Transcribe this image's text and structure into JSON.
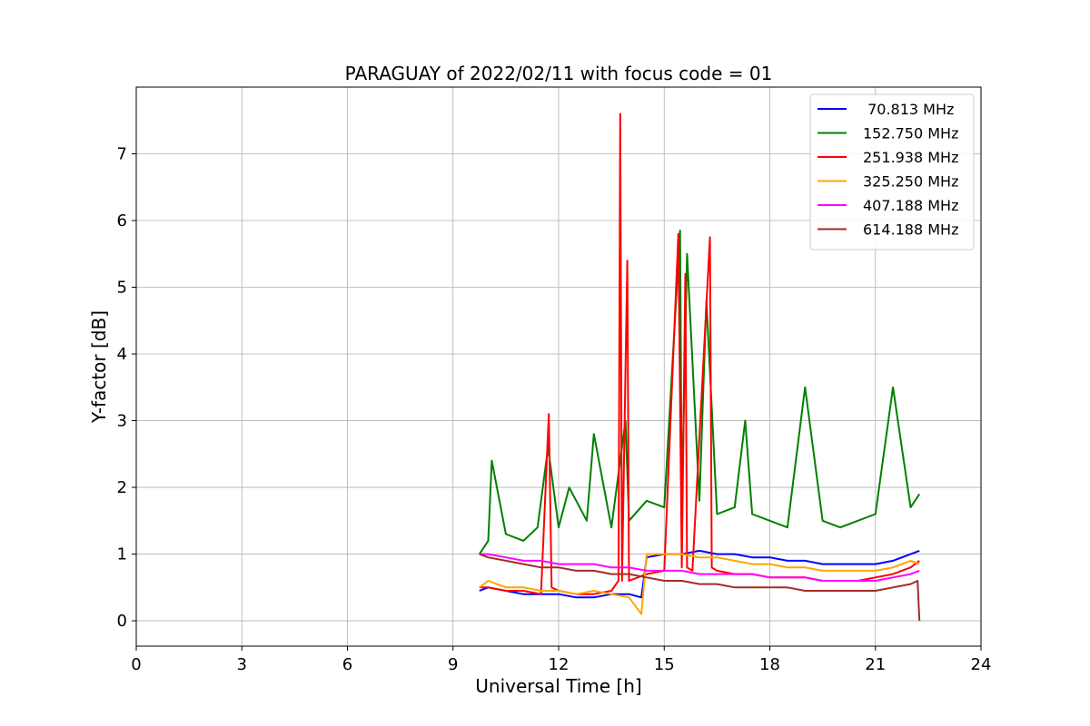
{
  "chart_data": {
    "type": "line",
    "title": "PARAGUAY of 2022/02/11 with focus code = 01",
    "xlabel": "Universal Time [h]",
    "ylabel": "Y-factor [dB]",
    "xlim": [
      0,
      24
    ],
    "ylim": [
      -0.38,
      8.0
    ],
    "xticks": [
      0,
      3,
      6,
      9,
      12,
      15,
      18,
      21,
      24
    ],
    "yticks": [
      0,
      1,
      2,
      3,
      4,
      5,
      6,
      7
    ],
    "grid": true,
    "legend_position": "top-right",
    "series": [
      {
        "name": " 70.813 MHz",
        "color": "#0000ff",
        "x": [
          9.75,
          10.0,
          10.5,
          11.0,
          11.5,
          12.0,
          12.5,
          13.0,
          13.5,
          14.0,
          14.35,
          14.5,
          15.0,
          15.5,
          16.0,
          16.5,
          17.0,
          17.5,
          18.0,
          18.5,
          19.0,
          19.5,
          20.0,
          20.5,
          21.0,
          21.5,
          22.0,
          22.25
        ],
        "y": [
          0.45,
          0.5,
          0.45,
          0.4,
          0.4,
          0.4,
          0.35,
          0.35,
          0.4,
          0.4,
          0.35,
          0.95,
          1.0,
          1.0,
          1.05,
          1.0,
          1.0,
          0.95,
          0.95,
          0.9,
          0.9,
          0.85,
          0.85,
          0.85,
          0.85,
          0.9,
          1.0,
          1.05
        ]
      },
      {
        "name": "152.750 MHz",
        "color": "#008000",
        "x": [
          9.75,
          10.0,
          10.1,
          10.5,
          11.0,
          11.4,
          11.7,
          12.0,
          12.3,
          12.8,
          13.0,
          13.5,
          13.9,
          14.0,
          14.5,
          15.0,
          15.45,
          15.5,
          15.65,
          16.0,
          16.2,
          16.5,
          17.0,
          17.3,
          17.5,
          18.0,
          18.5,
          19.0,
          19.5,
          20.0,
          20.5,
          21.0,
          21.5,
          22.0,
          22.25
        ],
        "y": [
          1.0,
          1.2,
          2.4,
          1.3,
          1.2,
          1.4,
          2.6,
          1.4,
          2.0,
          1.5,
          2.8,
          1.4,
          3.0,
          1.5,
          1.8,
          1.7,
          5.85,
          1.7,
          5.5,
          1.8,
          4.8,
          1.6,
          1.7,
          3.0,
          1.6,
          1.5,
          1.4,
          3.5,
          1.5,
          1.4,
          1.5,
          1.6,
          3.5,
          1.7,
          1.9
        ]
      },
      {
        "name": "251.938 MHz",
        "color": "#ff0000",
        "x": [
          9.75,
          10.0,
          10.5,
          11.0,
          11.5,
          11.72,
          11.8,
          12.0,
          12.5,
          13.0,
          13.5,
          13.7,
          13.75,
          13.8,
          13.95,
          14.0,
          14.5,
          15.0,
          15.4,
          15.5,
          15.6,
          15.65,
          15.8,
          16.3,
          16.35,
          16.5,
          17.0,
          17.5,
          18.0,
          18.5,
          19.0,
          19.5,
          20.0,
          20.5,
          21.0,
          21.5,
          22.0,
          22.25
        ],
        "y": [
          0.5,
          0.5,
          0.45,
          0.45,
          0.4,
          3.1,
          0.5,
          0.45,
          0.4,
          0.4,
          0.45,
          0.6,
          7.6,
          0.6,
          5.4,
          0.6,
          0.7,
          0.75,
          5.8,
          0.8,
          5.2,
          0.8,
          0.75,
          5.75,
          0.8,
          0.75,
          0.7,
          0.7,
          0.65,
          0.65,
          0.65,
          0.6,
          0.6,
          0.6,
          0.65,
          0.7,
          0.8,
          0.9
        ]
      },
      {
        "name": "325.250 MHz",
        "color": "#ffa500",
        "x": [
          9.75,
          10.0,
          10.5,
          11.0,
          11.5,
          12.0,
          12.5,
          13.0,
          13.5,
          14.0,
          14.35,
          14.5,
          15.0,
          15.5,
          16.0,
          16.5,
          17.0,
          17.5,
          18.0,
          18.5,
          19.0,
          19.5,
          20.0,
          20.5,
          21.0,
          21.5,
          22.0,
          22.25
        ],
        "y": [
          0.5,
          0.6,
          0.5,
          0.5,
          0.45,
          0.45,
          0.4,
          0.45,
          0.4,
          0.35,
          0.1,
          1.0,
          1.0,
          1.0,
          0.95,
          0.95,
          0.9,
          0.85,
          0.85,
          0.8,
          0.8,
          0.75,
          0.75,
          0.75,
          0.75,
          0.8,
          0.9,
          0.85
        ]
      },
      {
        "name": "407.188 MHz",
        "color": "#ff00ff",
        "x": [
          9.75,
          10.0,
          10.5,
          11.0,
          11.5,
          12.0,
          12.5,
          13.0,
          13.5,
          14.0,
          14.5,
          15.0,
          15.5,
          16.0,
          16.5,
          17.0,
          17.5,
          18.0,
          18.5,
          19.0,
          19.5,
          20.0,
          20.5,
          21.0,
          21.5,
          22.0,
          22.25
        ],
        "y": [
          1.0,
          1.0,
          0.95,
          0.9,
          0.9,
          0.85,
          0.85,
          0.85,
          0.8,
          0.8,
          0.75,
          0.75,
          0.75,
          0.7,
          0.7,
          0.7,
          0.7,
          0.65,
          0.65,
          0.65,
          0.6,
          0.6,
          0.6,
          0.6,
          0.65,
          0.7,
          0.75
        ]
      },
      {
        "name": "614.188 MHz",
        "color": "#a52a2a",
        "x": [
          9.75,
          10.0,
          10.5,
          11.0,
          11.5,
          12.0,
          12.5,
          13.0,
          13.5,
          14.0,
          14.5,
          15.0,
          15.5,
          16.0,
          16.5,
          17.0,
          17.5,
          18.0,
          18.5,
          19.0,
          19.5,
          20.0,
          20.5,
          21.0,
          21.5,
          22.0,
          22.2,
          22.25
        ],
        "y": [
          1.0,
          0.95,
          0.9,
          0.85,
          0.8,
          0.8,
          0.75,
          0.75,
          0.7,
          0.7,
          0.65,
          0.6,
          0.6,
          0.55,
          0.55,
          0.5,
          0.5,
          0.5,
          0.5,
          0.45,
          0.45,
          0.45,
          0.45,
          0.45,
          0.5,
          0.55,
          0.6,
          0.0
        ]
      }
    ]
  }
}
